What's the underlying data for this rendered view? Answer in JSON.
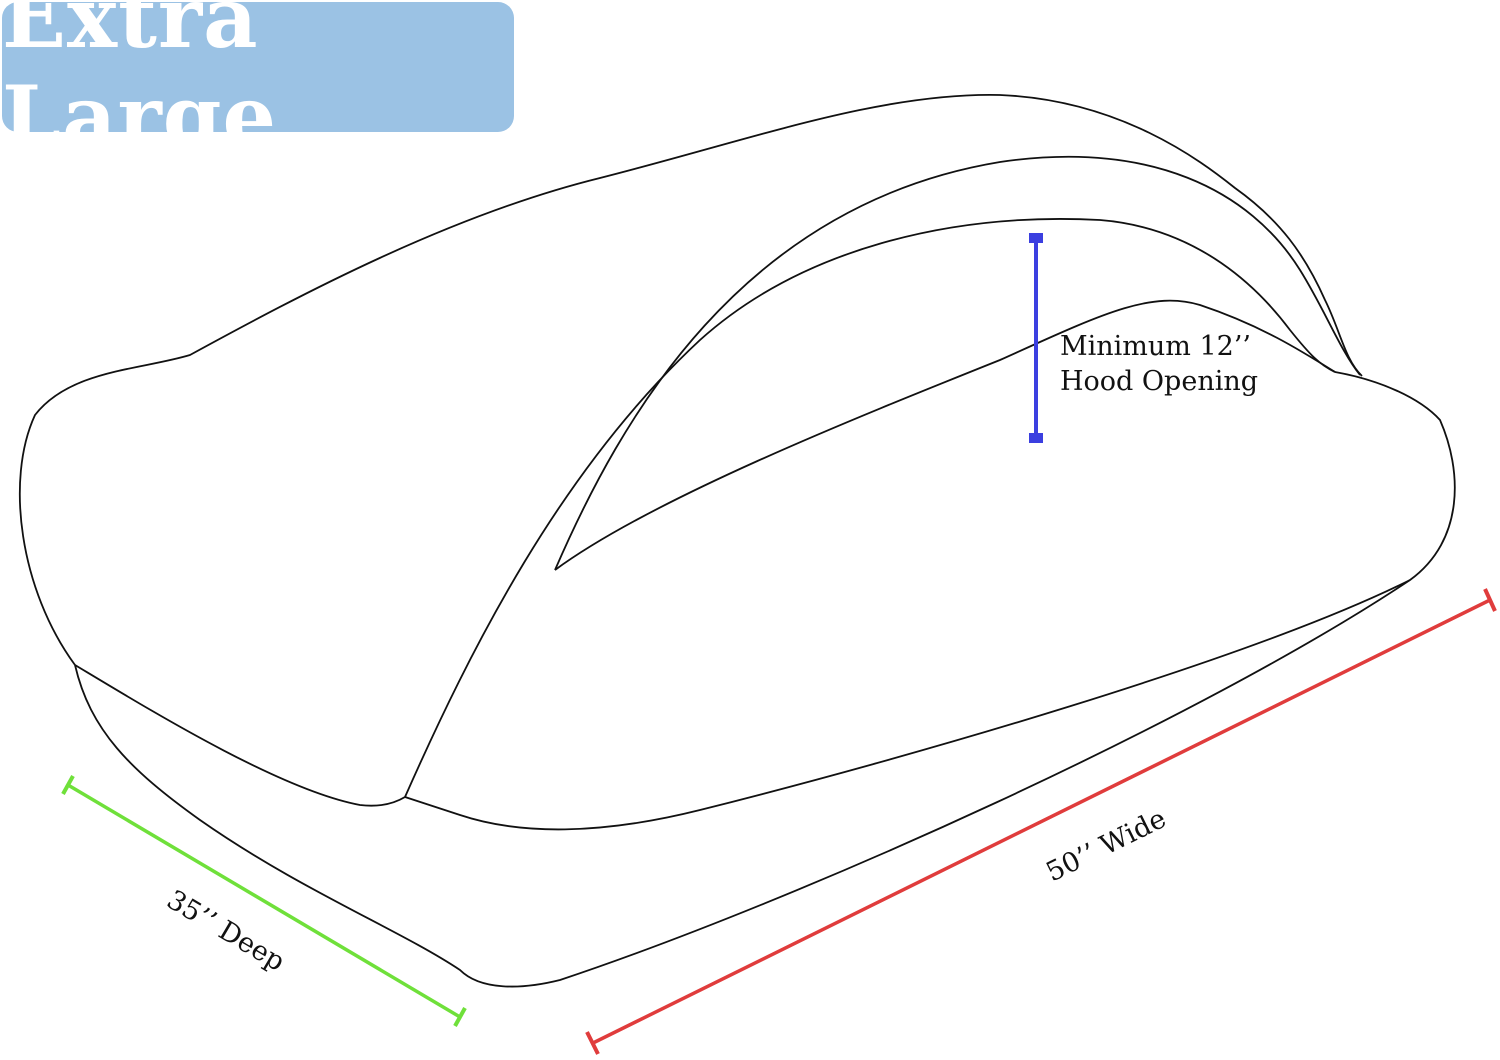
{
  "title": "Extra Large",
  "dimensions": {
    "hood": {
      "label_line1": "Minimum 12’’",
      "label_line2": "Hood Opening",
      "color": "#3b3fe0"
    },
    "deep": {
      "label": "35’’ Deep",
      "color": "#6fe03a"
    },
    "wide": {
      "label": "50’’ Wide",
      "color": "#e03c3c"
    }
  },
  "colors": {
    "badge": "#9bc2e4",
    "outline": "#111111"
  }
}
